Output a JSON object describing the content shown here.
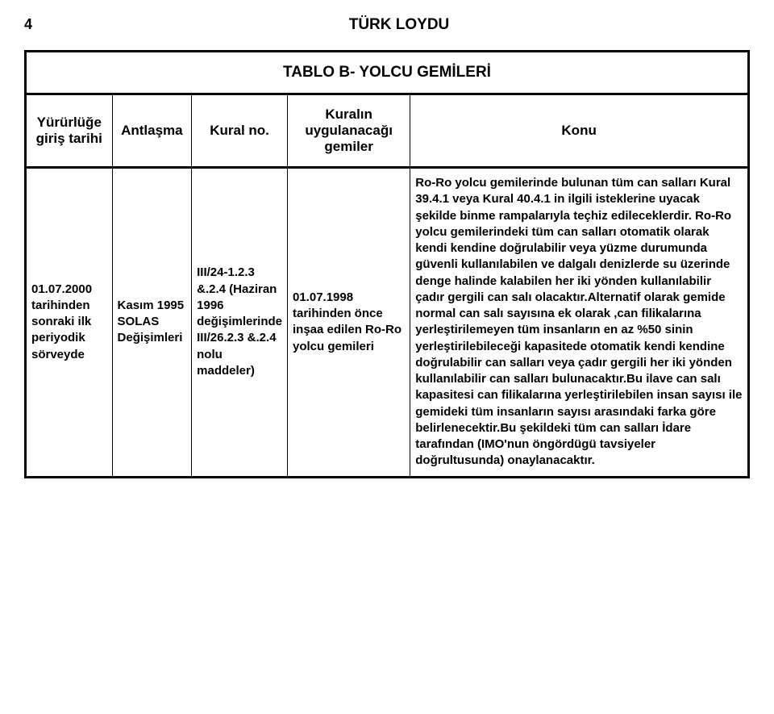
{
  "page_number": "4",
  "org": "TÜRK LOYDU",
  "table_title": "TABLO B- YOLCU GEMİLERİ",
  "headers": {
    "col1": "Yürürlüğe giriş tarihi",
    "col2": "Antlaşma",
    "col3": "Kural no.",
    "col4": "Kuralın uygulanacağı gemiler",
    "col5": "Konu"
  },
  "row": {
    "c1": "01.07.2000 tarihinden sonraki ilk periyodik sörveyde",
    "c2": "Kasım 1995 SOLAS Değişimleri",
    "c3": "III/24-1.2.3 &.2.4 (Haziran 1996 değişimlerinde III/26.2.3 &.2.4 nolu maddeler)",
    "c4": "01.07.1998 tarihinden önce inşaa edilen Ro-Ro yolcu gemileri",
    "c5": "Ro-Ro yolcu gemilerinde bulunan tüm can salları Kural 39.4.1 veya Kural 40.4.1 in ilgili isteklerine uyacak şekilde binme rampalarıyla teçhiz edileceklerdir. Ro-Ro yolcu gemilerindeki tüm can salları otomatik olarak kendi kendine doğrulabilir veya yüzme durumunda güvenli kullanılabilen ve dalgalı denizlerde su üzerinde denge halinde kalabilen her iki yönden kullanılabilir çadır gergili can salı olacaktır.Alternatif olarak gemide normal can salı sayısına ek olarak ,can filikalarına yerleştirilemeyen tüm insanların en az %50 sinin yerleştirilebileceği kapasitede otomatik kendi kendine doğrulabilir can salları veya çadır gergili her iki yönden kullanılabilir can salları bulunacaktır.Bu ilave can salı kapasitesi can filikalarına yerleştirilebilen insan sayısı ile gemideki tüm insanların sayısı arasındaki farka göre belirlenecektir.Bu şekildeki tüm can salları İdare tarafından (IMO'nun öngördügü tavsiyeler doğrultusunda) onaylanacaktır."
  }
}
